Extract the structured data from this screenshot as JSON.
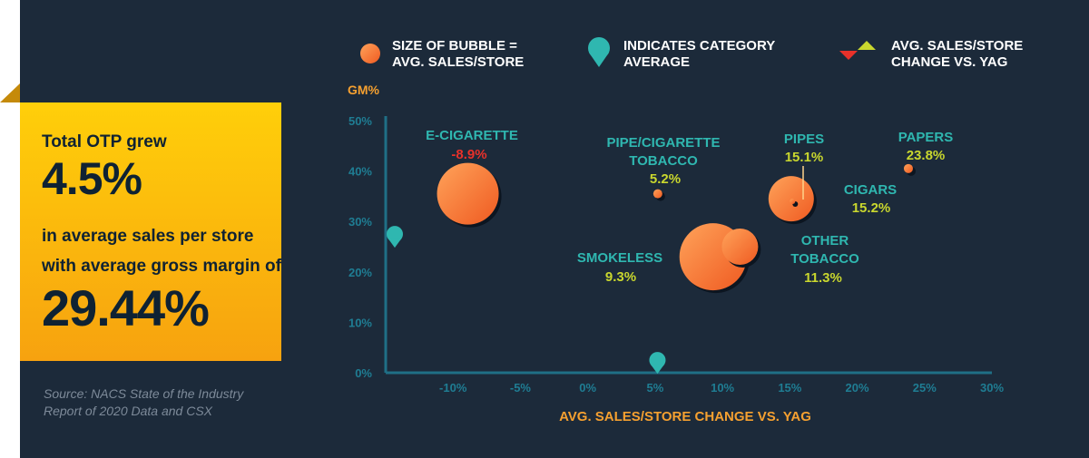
{
  "legend": {
    "size_line1": "SIZE OF BUBBLE =",
    "size_line2": "AVG. SALES/STORE",
    "avg_line1": "INDICATES CATEGORY",
    "avg_line2": "AVERAGE",
    "change_line1": "AVG. SALES/STORE",
    "change_line2": "CHANGE VS. YAG"
  },
  "stat_box": {
    "line1": "Total OTP grew",
    "value1": "4.5%",
    "line2": "in average sales per store",
    "line3": "with average gross margin of",
    "value2": "29.44%"
  },
  "source": {
    "line1": "Source: NACS State of the Industry",
    "line2": "Report of 2020 Data and CSX"
  },
  "colors": {
    "background": "#1c2a3a",
    "axis": "#1f6f86",
    "bubble_light": "#ff9a4f",
    "bubble_dark": "#f05a21",
    "category_label": "#2fb7b0",
    "positive": "#c9d72e",
    "negative": "#e8312a",
    "axis_title": "#f5a030",
    "stat_text": "#0f2233"
  },
  "chart_data": {
    "type": "scatter",
    "ylabel": "GM%",
    "xlabel": "AVG. SALES/STORE CHANGE VS. YAG",
    "xlim": [
      -15,
      30
    ],
    "ylim": [
      0,
      50
    ],
    "xticks": [
      "-10%",
      "-5%",
      "0%",
      "5%",
      "10%",
      "15%",
      "20%",
      "25%",
      "30%"
    ],
    "xtick_values": [
      -10,
      -5,
      0,
      5,
      10,
      15,
      20,
      25,
      30
    ],
    "yticks": [
      "0%",
      "10%",
      "20%",
      "30%",
      "40%",
      "50%"
    ],
    "ytick_values": [
      0,
      10,
      20,
      30,
      40,
      50
    ],
    "grid": false,
    "series": [
      {
        "name": "E-CIGARETTE",
        "x": -8.9,
        "y": 35.5,
        "size": 34,
        "change": "-8.9%",
        "direction": "down"
      },
      {
        "name": "PIPE/CIGARETTE TOBACCO",
        "x": 5.2,
        "y": 35.5,
        "size": 5,
        "change": "5.2%",
        "direction": "up"
      },
      {
        "name": "PIPES",
        "x": 15.1,
        "y": 34.5,
        "size": 25,
        "change": "15.1%",
        "direction": "up"
      },
      {
        "name": "PAPERS",
        "x": 23.8,
        "y": 40.5,
        "size": 5,
        "change": "23.8%",
        "direction": "up"
      },
      {
        "name": "CIGARS",
        "x": 15.2,
        "y": 34.0,
        "size": 3,
        "change": "15.2%",
        "direction": "up"
      },
      {
        "name": "SMOKELESS",
        "x": 9.3,
        "y": 23.0,
        "size": 37,
        "change": "9.3%",
        "direction": "up"
      },
      {
        "name": "OTHER TOBACCO",
        "x": 11.3,
        "y": 25.0,
        "size": 20,
        "change": "11.3%",
        "direction": "up"
      }
    ],
    "category_averages": [
      {
        "x": -15,
        "y": 27.5
      },
      {
        "x": 4.5,
        "y": 2.5
      }
    ]
  }
}
